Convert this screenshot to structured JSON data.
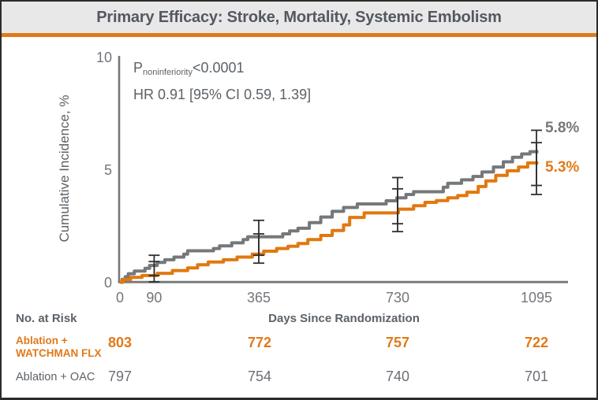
{
  "title": "Primary Efficacy: Stroke, Mortality, Systemic Embolism",
  "colors": {
    "accent_orange": "#e1791a",
    "series_gray": "#75787b",
    "series_orange": "#e1780f",
    "axis": "#75787b",
    "error_bar": "#2f2f2f",
    "header_bg": "#e8e8e9",
    "title_text": "#54585f",
    "body_text": "#5c6268"
  },
  "annotation": {
    "p_prefix": "P",
    "p_sub": "noninferiority",
    "p_value": "<0.0001",
    "hr_line": "HR 0.91 [95% CI 0.59, 1.39]"
  },
  "axes": {
    "y_label": "Cumulative Incidence, %",
    "x_label": "Days Since Randomization"
  },
  "end_labels": {
    "oac": "5.8%",
    "watchman": "5.3%"
  },
  "chart_data": {
    "type": "line",
    "step": true,
    "title": "Primary Efficacy: Stroke, Mortality, Systemic Embolism",
    "xlabel": "Days Since Randomization",
    "ylabel": "Cumulative Incidence, %",
    "xlim": [
      0,
      1178
    ],
    "ylim": [
      0,
      10
    ],
    "x_ticks": [
      0,
      90,
      365,
      730,
      1095
    ],
    "y_ticks": [
      0,
      5,
      10
    ],
    "x_end": 1100,
    "legend_position": "none",
    "grid": false,
    "series": [
      {
        "id": "ablation-oac",
        "name": "Ablation + OAC",
        "color": "#75787b",
        "end_value_pct": 5.8,
        "points": [
          [
            0,
            0
          ],
          [
            6,
            0.13
          ],
          [
            14,
            0.25
          ],
          [
            22,
            0.38
          ],
          [
            38,
            0.5
          ],
          [
            66,
            0.62
          ],
          [
            78,
            0.75
          ],
          [
            98,
            0.88
          ],
          [
            118,
            1.0
          ],
          [
            142,
            1.12
          ],
          [
            168,
            1.25
          ],
          [
            178,
            1.4
          ],
          [
            246,
            1.5
          ],
          [
            262,
            1.62
          ],
          [
            294,
            1.75
          ],
          [
            324,
            1.9
          ],
          [
            336,
            2.02
          ],
          [
            428,
            2.15
          ],
          [
            446,
            2.28
          ],
          [
            468,
            2.4
          ],
          [
            498,
            2.65
          ],
          [
            528,
            2.9
          ],
          [
            558,
            3.15
          ],
          [
            588,
            3.32
          ],
          [
            624,
            3.48
          ],
          [
            700,
            3.62
          ],
          [
            728,
            3.75
          ],
          [
            752,
            3.9
          ],
          [
            772,
            4.02
          ],
          [
            850,
            4.22
          ],
          [
            862,
            4.4
          ],
          [
            898,
            4.55
          ],
          [
            928,
            4.7
          ],
          [
            952,
            4.9
          ],
          [
            982,
            5.12
          ],
          [
            1008,
            5.35
          ],
          [
            1032,
            5.55
          ],
          [
            1056,
            5.7
          ],
          [
            1078,
            5.8
          ]
        ],
        "error_bars": [
          {
            "x": 90,
            "lo": 0.3,
            "hi": 1.2
          },
          {
            "x": 365,
            "lo": 1.2,
            "hi": 2.75
          },
          {
            "x": 730,
            "lo": 2.6,
            "hi": 4.65
          },
          {
            "x": 1095,
            "lo": 4.3,
            "hi": 6.75
          }
        ]
      },
      {
        "id": "ablation-watchman-flx",
        "name": "Ablation + WATCHMAN FLX",
        "color": "#e1780f",
        "end_value_pct": 5.3,
        "points": [
          [
            0,
            0
          ],
          [
            8,
            0.12
          ],
          [
            28,
            0.22
          ],
          [
            58,
            0.3
          ],
          [
            98,
            0.4
          ],
          [
            138,
            0.52
          ],
          [
            178,
            0.64
          ],
          [
            204,
            0.78
          ],
          [
            232,
            0.9
          ],
          [
            272,
            1.0
          ],
          [
            308,
            1.12
          ],
          [
            348,
            1.25
          ],
          [
            378,
            1.38
          ],
          [
            412,
            1.5
          ],
          [
            442,
            1.6
          ],
          [
            468,
            1.72
          ],
          [
            494,
            1.9
          ],
          [
            528,
            2.08
          ],
          [
            558,
            2.3
          ],
          [
            588,
            2.55
          ],
          [
            604,
            2.88
          ],
          [
            642,
            3.08
          ],
          [
            732,
            3.25
          ],
          [
            772,
            3.4
          ],
          [
            802,
            3.55
          ],
          [
            832,
            3.63
          ],
          [
            862,
            3.75
          ],
          [
            888,
            3.85
          ],
          [
            912,
            4.0
          ],
          [
            942,
            4.25
          ],
          [
            962,
            4.5
          ],
          [
            988,
            4.75
          ],
          [
            1018,
            4.95
          ],
          [
            1048,
            5.12
          ],
          [
            1072,
            5.3
          ]
        ],
        "error_bars": [
          {
            "x": 90,
            "lo": 0.02,
            "hi": 0.92
          },
          {
            "x": 365,
            "lo": 0.85,
            "hi": 2.15
          },
          {
            "x": 730,
            "lo": 2.25,
            "hi": 4.15
          },
          {
            "x": 1095,
            "lo": 3.9,
            "hi": 6.2
          }
        ]
      }
    ]
  },
  "risk_table": {
    "header": "No. at Risk",
    "rows": [
      {
        "label_line1": "Ablation +",
        "label_line2": "WATCHMAN FLX",
        "values": [
          "803",
          "772",
          "757",
          "722"
        ]
      },
      {
        "label_line1": "Ablation + OAC",
        "label_line2": "",
        "values": [
          "797",
          "754",
          "740",
          "701"
        ]
      }
    ]
  }
}
